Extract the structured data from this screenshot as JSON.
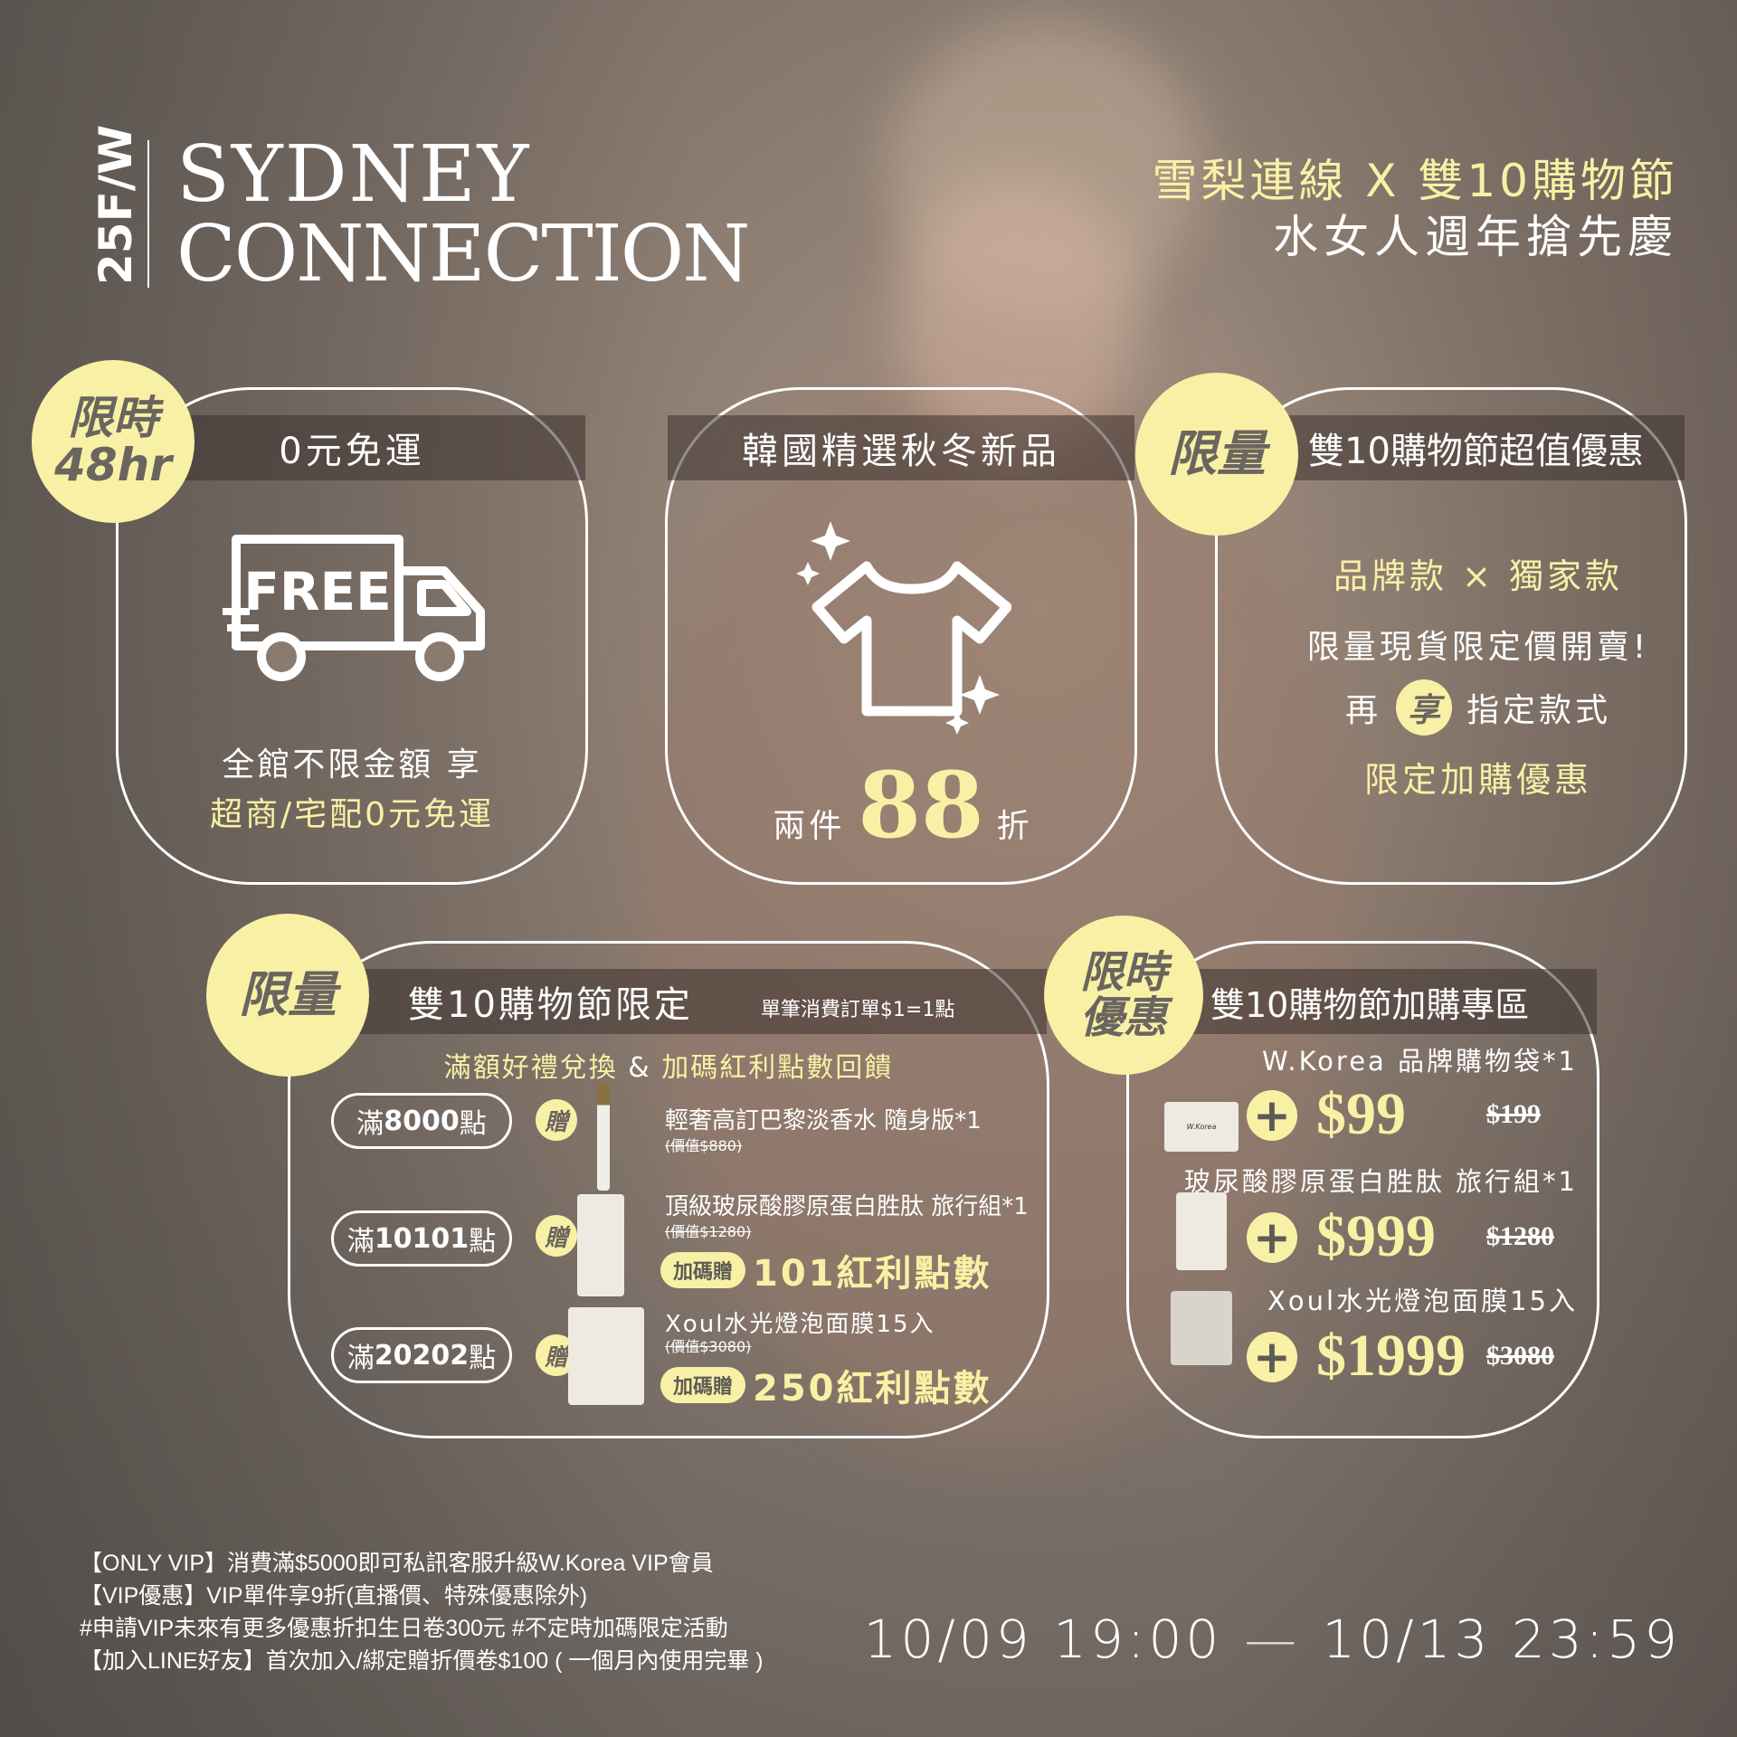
{
  "brand": {
    "season": "25F/W",
    "line1": "SYDNEY",
    "line2": "CONNECTION"
  },
  "headline": {
    "line1": "雪梨連線 X 雙10購物節",
    "line2": "水女人週年搶先慶"
  },
  "colors": {
    "accent": "#f8f1a5",
    "badge_text": "#6b6560"
  },
  "card_shipping": {
    "badge_line1": "限時",
    "badge_line2": "48hr",
    "title": "0元免運",
    "icon": "free-truck-icon",
    "icon_text": "FREE",
    "line1": "全館不限金額 享",
    "line2": "超商/宅配0元免運"
  },
  "card_new": {
    "title": "韓國精選秋冬新品",
    "icon": "tshirt-sparkle-icon",
    "prefix": "兩件",
    "number": "88",
    "suffix": "折"
  },
  "card_limited": {
    "badge": "限量",
    "title": "雙10購物節超值優惠",
    "line1": "品牌款 × 獨家款",
    "line2": "限量現貨限定價開賣!",
    "line3_pre": "再",
    "line3_badge": "享",
    "line3_post": "指定款式",
    "line4": "限定加購優惠"
  },
  "card_points": {
    "badge": "限量",
    "title": "雙10購物節限定",
    "note": "單筆消費訂單$1=1點",
    "subtitle_a": "滿額好禮兌換",
    "subtitle_amp": "&",
    "subtitle_b": "加碼紅利點數回饋",
    "gift_label": "贈",
    "tiers": [
      {
        "pre": "滿",
        "points": "8000",
        "post": "點",
        "item": "輕奢高訂巴黎淡香水 隨身版*1",
        "value": "(價值$880)"
      },
      {
        "pre": "滿",
        "points": "10101",
        "post": "點",
        "item": "頂級玻尿酸膠原蛋白胜肽 旅行組*1",
        "value": "(價值$1280)",
        "bonus_tag": "加碼贈",
        "bonus": "101紅利點數"
      },
      {
        "pre": "滿",
        "points": "20202",
        "post": "點",
        "item": "Xoul水光燈泡面膜15入",
        "value": "(價值$3080)",
        "bonus_tag": "加碼贈",
        "bonus": "250紅利點數"
      }
    ]
  },
  "card_addon": {
    "badge_line1": "限時",
    "badge_line2": "優惠",
    "title": "雙10購物節加購專區",
    "items": [
      {
        "name": "W.Korea 品牌購物袋*1",
        "price": "$99",
        "original": "$199",
        "bag_text": "W.Korea"
      },
      {
        "name": "玻尿酸膠原蛋白胜肽 旅行組*1",
        "price": "$999",
        "original": "$1280"
      },
      {
        "name": "Xoul水光燈泡面膜15入",
        "price": "$1999",
        "original": "$3080"
      }
    ]
  },
  "footer": {
    "lines": [
      "【ONLY VIP】消費滿$5000即可私訊客服升級W.Korea VIP會員",
      "【VIP優惠】VIP單件享9折(直播價、特殊優惠除外)",
      "#申請VIP未來有更多優惠折扣生日卷300元 #不定時加碼限定活動",
      "【加入LINE好友】首次加入/綁定贈折價卷$100 ( 一個月內使用完畢 )"
    ],
    "date_start": "10/09 19:00",
    "date_sep": "—",
    "date_end": "10/13 23:59"
  }
}
